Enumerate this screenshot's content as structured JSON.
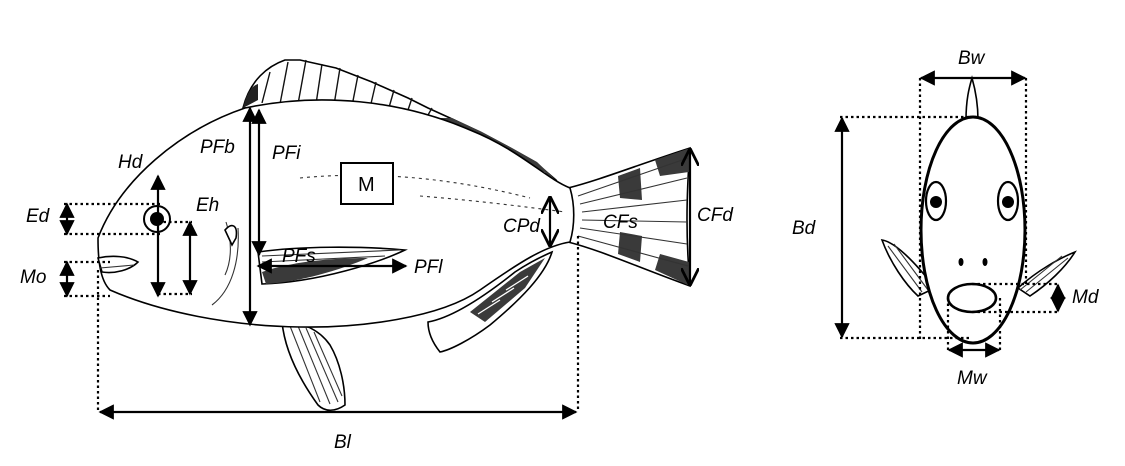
{
  "labels": {
    "hd": "Hd",
    "ed": "Ed",
    "eh": "Eh",
    "mo": "Mo",
    "pfb": "PFb",
    "pfi": "PFi",
    "pfs": "PFs",
    "pfl": "PFl",
    "m": "M",
    "cpd": "CPd",
    "cfs": "CFs",
    "cfd": "CFd",
    "bl": "Bl",
    "bw": "Bw",
    "bd": "Bd",
    "md": "Md",
    "mw": "Mw"
  }
}
